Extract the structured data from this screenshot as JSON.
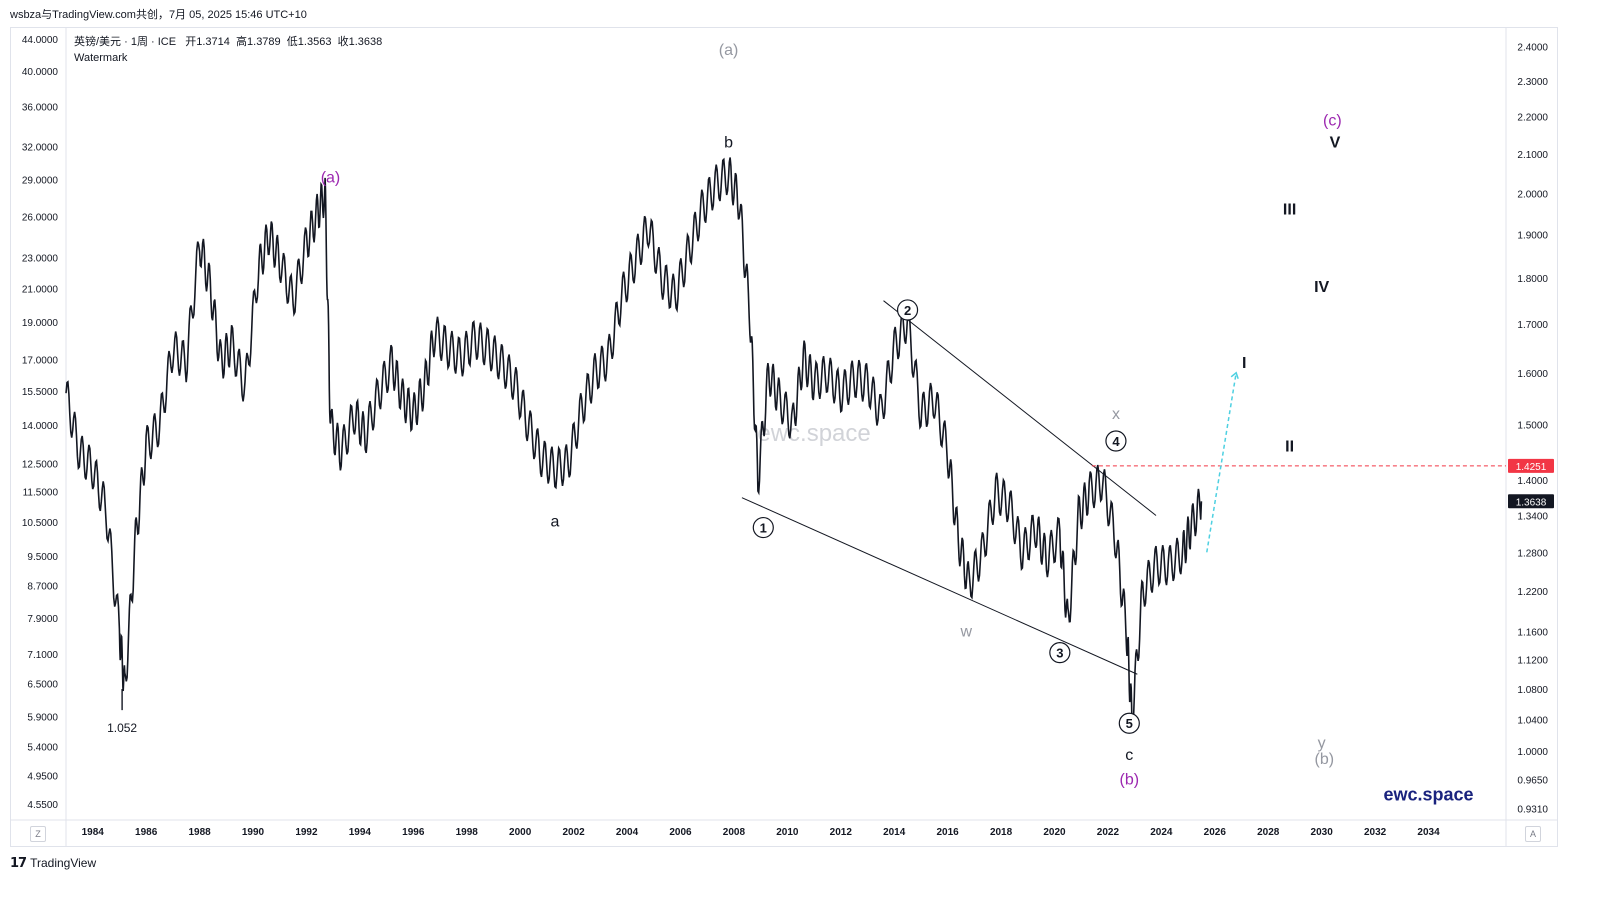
{
  "header": {
    "title": "wsbza与TradingView.com共创，7月 05, 2025 15:46 UTC+10"
  },
  "legend": {
    "symbol": "英镑/美元 · 1周 · ICE",
    "open_label": "开",
    "open": "1.3714",
    "high_label": "高",
    "high": "1.3789",
    "low_label": "低",
    "low": "1.3563",
    "close_label": "收",
    "close": "1.3638",
    "watermark_text": "Watermark"
  },
  "footer": {
    "brand": "TradingView",
    "z_button": "Z",
    "a_button": "A"
  },
  "colors": {
    "price": "#131722",
    "label_purple": "#9c27b0",
    "label_gray": "#9598a1",
    "dashed_red": "#f23645",
    "projection": "#4dd0e1",
    "badge_red": "#f23645",
    "badge_dark": "#131722",
    "brand_blue": "#1a237e"
  },
  "chart_data": {
    "type": "line",
    "title": "",
    "x_axis": {
      "ticks": [
        "1984",
        "1986",
        "1988",
        "1990",
        "1992",
        "1994",
        "1996",
        "1998",
        "2000",
        "2002",
        "2004",
        "2006",
        "2008",
        "2010",
        "2012",
        "2014",
        "2016",
        "2018",
        "2020",
        "2022",
        "2024",
        "2026",
        "2028",
        "2030",
        "2032",
        "2034"
      ]
    },
    "left_axis": {
      "scale": "log",
      "ticks": [
        "44.0000",
        "40.0000",
        "36.0000",
        "32.0000",
        "29.0000",
        "26.0000",
        "23.0000",
        "21.0000",
        "19.0000",
        "17.0000",
        "15.5000",
        "14.0000",
        "12.5000",
        "11.5000",
        "10.5000",
        "9.5000",
        "8.7000",
        "7.9000",
        "7.1000",
        "6.5000",
        "5.9000",
        "5.4000",
        "4.9500",
        "4.5500"
      ]
    },
    "right_axis": {
      "scale": "log",
      "ticks": [
        "2.4000",
        "2.3000",
        "2.2000",
        "2.1000",
        "2.0000",
        "1.9000",
        "1.8000",
        "1.7000",
        "1.6000",
        "1.5000",
        "1.4000",
        "1.3400",
        "1.2800",
        "1.2200",
        "1.1600",
        "1.1200",
        "1.0800",
        "1.0400",
        "1.0000",
        "0.9650",
        "0.9310"
      ],
      "range": [
        0.92,
        2.45
      ]
    },
    "price_series": {
      "name": "GBPUSD",
      "x": [
        1983.0,
        1983.5,
        1984.0,
        1984.5,
        1985.0,
        1985.2,
        1985.6,
        1986.0,
        1986.5,
        1987.0,
        1987.5,
        1988.0,
        1988.4,
        1988.8,
        1989.2,
        1989.7,
        1990.2,
        1990.6,
        1991.0,
        1991.5,
        1992.0,
        1992.4,
        1992.7,
        1992.9,
        1993.3,
        1993.8,
        1994.2,
        1994.7,
        1995.2,
        1995.6,
        1996.0,
        1996.4,
        1996.8,
        1997.3,
        1997.8,
        1998.3,
        1998.8,
        1999.3,
        1999.8,
        2000.3,
        2000.8,
        2001.3,
        2001.8,
        2002.3,
        2002.8,
        2003.3,
        2003.8,
        2004.3,
        2004.8,
        2005.3,
        2005.8,
        2006.3,
        2006.8,
        2007.3,
        2007.8,
        2008.2,
        2008.6,
        2008.9,
        2009.3,
        2009.7,
        2010.2,
        2010.6,
        2011.0,
        2011.5,
        2012.0,
        2012.5,
        2013.0,
        2013.5,
        2014.0,
        2014.5,
        2015.0,
        2015.5,
        2016.0,
        2016.4,
        2016.8,
        2017.3,
        2017.8,
        2018.3,
        2018.8,
        2019.3,
        2019.7,
        2020.2,
        2020.5,
        2020.9,
        2021.3,
        2021.8,
        2022.3,
        2022.7,
        2022.9,
        2023.3,
        2023.8,
        2024.3,
        2024.8,
        2025.1,
        2025.5
      ],
      "close": [
        1.56,
        1.45,
        1.42,
        1.35,
        1.16,
        1.08,
        1.3,
        1.46,
        1.5,
        1.65,
        1.62,
        1.88,
        1.78,
        1.62,
        1.66,
        1.57,
        1.82,
        1.9,
        1.84,
        1.75,
        1.88,
        1.95,
        2.0,
        1.5,
        1.45,
        1.52,
        1.48,
        1.56,
        1.62,
        1.55,
        1.52,
        1.57,
        1.68,
        1.65,
        1.63,
        1.67,
        1.65,
        1.62,
        1.58,
        1.5,
        1.44,
        1.42,
        1.43,
        1.53,
        1.6,
        1.63,
        1.76,
        1.84,
        1.92,
        1.8,
        1.76,
        1.86,
        1.96,
        2.02,
        2.05,
        1.98,
        1.72,
        1.4,
        1.6,
        1.55,
        1.5,
        1.63,
        1.58,
        1.6,
        1.56,
        1.59,
        1.58,
        1.52,
        1.65,
        1.71,
        1.52,
        1.55,
        1.45,
        1.3,
        1.23,
        1.28,
        1.38,
        1.36,
        1.28,
        1.32,
        1.27,
        1.31,
        1.17,
        1.34,
        1.38,
        1.4,
        1.3,
        1.16,
        1.04,
        1.22,
        1.26,
        1.26,
        1.28,
        1.32,
        1.3638
      ],
      "low_marks": [
        {
          "x": 1985.1,
          "value": 1.052,
          "label": "1.052"
        }
      ]
    },
    "trendlines": [
      {
        "name": "upper-channel",
        "x": [
          2013.6,
          2023.8
        ],
        "y": [
          1.75,
          1.34
        ]
      },
      {
        "name": "lower-channel",
        "x": [
          2008.3,
          2023.1
        ],
        "y": [
          1.37,
          1.1
        ]
      }
    ],
    "dashed_level": {
      "x_start": 2021.4,
      "value": 1.4251,
      "label": "1.4251"
    },
    "last_price": {
      "value": 1.3638,
      "label": "1.3638"
    },
    "projection": {
      "x": [
        2025.7,
        2026.8
      ],
      "y": [
        1.28,
        1.6
      ]
    },
    "wave_labels": [
      {
        "text": "(a)",
        "x": 1992.9,
        "y": 2.04,
        "color": "purple"
      },
      {
        "text": "(a)",
        "x": 2007.8,
        "y": 2.39,
        "color": "gray"
      },
      {
        "text": "b",
        "x": 2007.8,
        "y": 2.13,
        "color": "black"
      },
      {
        "text": "a",
        "x": 2001.3,
        "y": 1.33,
        "color": "black"
      },
      {
        "text": "2",
        "x": 2014.5,
        "y": 1.73,
        "color": "black",
        "circled": true
      },
      {
        "text": "1",
        "x": 2009.1,
        "y": 1.32,
        "color": "black",
        "circled": true
      },
      {
        "text": "x",
        "x": 2022.3,
        "y": 1.52,
        "color": "gray"
      },
      {
        "text": "4",
        "x": 2022.3,
        "y": 1.47,
        "color": "black",
        "circled": true
      },
      {
        "text": "w",
        "x": 2016.7,
        "y": 1.16,
        "color": "gray"
      },
      {
        "text": "3",
        "x": 2020.2,
        "y": 1.13,
        "color": "black",
        "circled": true
      },
      {
        "text": "5",
        "x": 2022.8,
        "y": 1.035,
        "color": "black",
        "circled": true
      },
      {
        "text": "c",
        "x": 2022.8,
        "y": 0.995,
        "color": "black"
      },
      {
        "text": "(b)",
        "x": 2022.8,
        "y": 0.965,
        "color": "purple"
      },
      {
        "text": "(c)",
        "x": 2030.4,
        "y": 2.19,
        "color": "purple"
      },
      {
        "text": "V",
        "x": 2030.5,
        "y": 2.13,
        "color": "black"
      },
      {
        "text": "III",
        "x": 2028.8,
        "y": 1.96,
        "color": "black"
      },
      {
        "text": "IV",
        "x": 2030.0,
        "y": 1.78,
        "color": "black"
      },
      {
        "text": "I",
        "x": 2027.1,
        "y": 1.62,
        "color": "black"
      },
      {
        "text": "II",
        "x": 2028.8,
        "y": 1.46,
        "color": "black"
      },
      {
        "text": "y",
        "x": 2030.0,
        "y": 1.01,
        "color": "gray"
      },
      {
        "text": "(b)",
        "x": 2030.1,
        "y": 0.99,
        "color": "gray"
      }
    ],
    "watermarks": [
      {
        "text": "ewc.space",
        "x": 2011.0,
        "y": 1.47
      },
      {
        "text": "ewc.space",
        "x": 2034.0,
        "y": 0.94
      }
    ]
  }
}
